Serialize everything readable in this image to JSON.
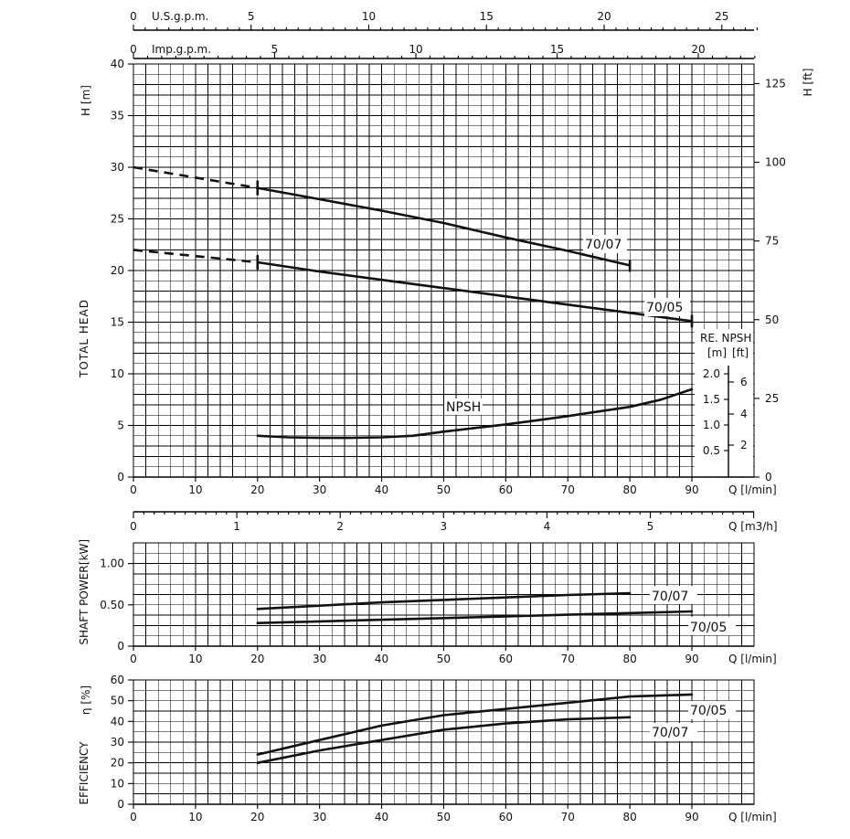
{
  "chart_data": [
    {
      "id": "head",
      "type": "line",
      "x_axis": {
        "label": "Q [l/min]",
        "range": [
          0,
          90
        ],
        "ticks": [
          0,
          10,
          20,
          30,
          40,
          50,
          60,
          70,
          80,
          90
        ]
      },
      "x_axis_m3h": {
        "label": "Q [m3/h]",
        "range": [
          0,
          5.4
        ],
        "ticks": [
          0,
          1,
          2,
          3,
          4,
          5
        ]
      },
      "x_axis_usgpm": {
        "label": "U.S.g.p.m.",
        "ticks": [
          0,
          5,
          10,
          15,
          20,
          25
        ]
      },
      "x_axis_impgpm": {
        "label": "Imp.g.p.m.",
        "ticks": [
          0,
          5,
          10,
          15,
          20
        ]
      },
      "y_axis": {
        "label": "H [m]",
        "range": [
          0,
          40
        ],
        "ticks": [
          0,
          5,
          10,
          15,
          20,
          25,
          30,
          35,
          40
        ]
      },
      "y_axis_ft": {
        "label": "H [ft]",
        "ticks": [
          0,
          25,
          50,
          75,
          100,
          125
        ]
      },
      "ylabel": "TOTAL HEAD",
      "grid": true,
      "series": [
        {
          "name": "70/07",
          "x_dash": [
            0,
            20
          ],
          "y_dash": [
            30,
            28
          ],
          "x": [
            20,
            30,
            40,
            50,
            60,
            70,
            80
          ],
          "y": [
            28,
            26.9,
            25.8,
            24.6,
            23.2,
            21.9,
            20.5
          ]
        },
        {
          "name": "70/05",
          "x_dash": [
            0,
            20
          ],
          "y_dash": [
            22,
            20.8
          ],
          "x": [
            20,
            30,
            40,
            50,
            60,
            70,
            80,
            90
          ],
          "y": [
            20.8,
            19.9,
            19.1,
            18.3,
            17.5,
            16.7,
            15.9,
            15.1
          ]
        },
        {
          "name": "NPSH",
          "x": [
            20,
            25,
            30,
            35,
            40,
            45,
            50,
            55,
            60,
            65,
            70,
            75,
            80,
            85,
            90
          ],
          "y": [
            4.0,
            3.85,
            3.8,
            3.8,
            3.85,
            4.0,
            4.4,
            4.75,
            5.1,
            5.5,
            5.9,
            6.35,
            6.8,
            7.5,
            8.5
          ]
        }
      ],
      "npsh_scale": {
        "title": "RE. NPSH",
        "unit_m": "[m]",
        "unit_ft": "[ft]",
        "m_ticks": [
          "0.5",
          "1.0",
          "1.5",
          "2.0"
        ],
        "ft_ticks": [
          "2",
          "4",
          "6"
        ]
      }
    },
    {
      "id": "power",
      "type": "line",
      "x_axis": {
        "label": "Q [l/min]",
        "range": [
          0,
          90
        ],
        "ticks": [
          0,
          10,
          20,
          30,
          40,
          50,
          60,
          70,
          80,
          90
        ]
      },
      "y_axis": {
        "label": "[kW]",
        "range": [
          0,
          1.25
        ],
        "ticks": [
          "0",
          "0.50",
          "1.00"
        ]
      },
      "ylabel": "SHAFT POWER",
      "grid": true,
      "series": [
        {
          "name": "70/07",
          "x": [
            20,
            30,
            40,
            50,
            60,
            70,
            80
          ],
          "y": [
            0.45,
            0.49,
            0.53,
            0.56,
            0.59,
            0.62,
            0.64
          ]
        },
        {
          "name": "70/05",
          "x": [
            20,
            30,
            40,
            50,
            60,
            70,
            80,
            90
          ],
          "y": [
            0.28,
            0.3,
            0.32,
            0.34,
            0.36,
            0.38,
            0.4,
            0.42
          ]
        }
      ]
    },
    {
      "id": "efficiency",
      "type": "line",
      "x_axis": {
        "label": "Q [l/min]",
        "range": [
          0,
          90
        ],
        "ticks": [
          0,
          10,
          20,
          30,
          40,
          50,
          60,
          70,
          80,
          90
        ]
      },
      "y_axis": {
        "label": "η [%]",
        "range": [
          0,
          60
        ],
        "ticks": [
          0,
          10,
          20,
          30,
          40,
          50,
          60
        ]
      },
      "ylabel": "EFFICIENCY",
      "grid": true,
      "series": [
        {
          "name": "70/05",
          "x": [
            20,
            30,
            40,
            50,
            60,
            70,
            80,
            90
          ],
          "y": [
            24,
            31,
            38,
            43,
            46,
            49,
            52,
            53
          ]
        },
        {
          "name": "70/07",
          "x": [
            20,
            30,
            40,
            50,
            60,
            70,
            80
          ],
          "y": [
            20,
            26,
            31,
            36,
            39,
            41,
            42
          ]
        }
      ]
    }
  ]
}
